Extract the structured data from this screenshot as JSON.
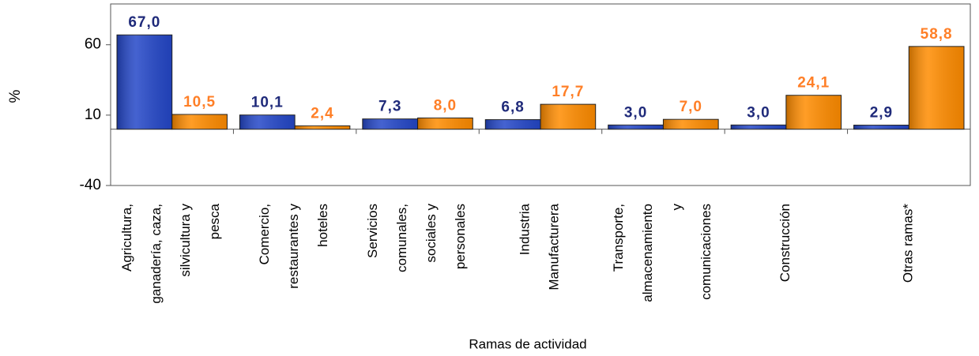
{
  "chart_data": {
    "type": "bar",
    "y_label": "%",
    "x_label": "Ramas de actividad",
    "categories": [
      "Agricultura,\nganadería, caza,\nsilvicultura y\npesca",
      "Comercio,\nrestaurantes y\nhoteles",
      "Servicios\ncomunales,\nsociales y\npersonales",
      "Industria\nManufacturera",
      "Transporte,\nalmacenamiento\ny\ncomunicaciones",
      "Construcción",
      "Otras ramas*"
    ],
    "series": [
      {
        "color": "#2447c8",
        "values": [
          67.0,
          10.1,
          7.3,
          6.8,
          3.0,
          3.0,
          2.9
        ],
        "value_labels": [
          "67,0",
          "10,1",
          "7,3",
          "6,8",
          "3,0",
          "3,0",
          "2,9"
        ]
      },
      {
        "color": "#ff8c00",
        "values": [
          10.5,
          2.4,
          8.0,
          17.7,
          7.0,
          24.1,
          58.8
        ],
        "value_labels": [
          "10,5",
          "2,4",
          "8,0",
          "17,7",
          "7,0",
          "24,1",
          "58,8"
        ]
      }
    ],
    "ylim": [
      -40,
      89
    ],
    "yticks": [
      -40,
      10,
      60
    ],
    "grid": false
  }
}
